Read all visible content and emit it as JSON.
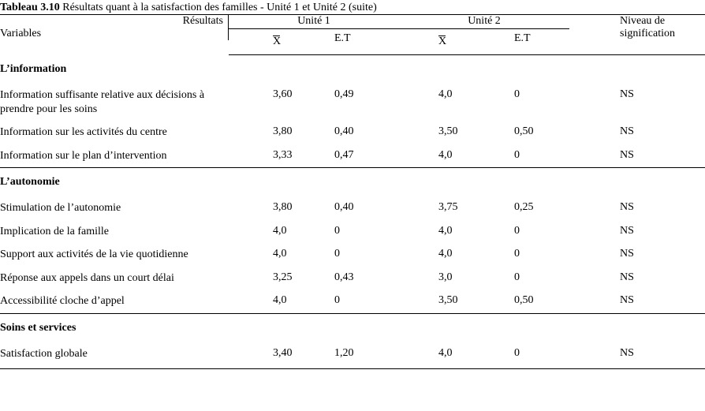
{
  "table": {
    "title_prefix": "Tableau 3.10",
    "title_rest": "  Résultats quant à la satisfaction des familles - Unité 1 et Unité 2 (suite)",
    "columns": {
      "variables": "Variables",
      "results": "Résultats",
      "unit1": "Unité 1",
      "unit2": "Unité 2",
      "sig": "Niveau de signification",
      "xbar": "X",
      "et": "E.T"
    },
    "sections": [
      {
        "label": "L’information",
        "rows": [
          {
            "label": "Information suffisante relative aux décisions à prendre pour les soins",
            "x1": "3,60",
            "et1": "0,49",
            "x2": "4,0",
            "et2": "0",
            "sig": "NS"
          },
          {
            "label": "Information sur les activités du centre",
            "x1": "3,80",
            "et1": "0,40",
            "x2": "3,50",
            "et2": "0,50",
            "sig": "NS"
          },
          {
            "label": "Information sur le plan d’intervention",
            "x1": "3,33",
            "et1": "0,47",
            "x2": "4,0",
            "et2": "0",
            "sig": "NS"
          }
        ]
      },
      {
        "label": "L’autonomie",
        "rows": [
          {
            "label": "Stimulation de l’autonomie",
            "x1": "3,80",
            "et1": "0,40",
            "x2": "3,75",
            "et2": "0,25",
            "sig": "NS"
          },
          {
            "label": "Implication de la famille",
            "x1": "4,0",
            "et1": "0",
            "x2": "4,0",
            "et2": "0",
            "sig": "NS"
          },
          {
            "label": "Support aux activités de la vie quotidienne",
            "x1": "4,0",
            "et1": "0",
            "x2": "4,0",
            "et2": "0",
            "sig": "NS"
          },
          {
            "label": "Réponse aux appels dans un court délai",
            "x1": "3,25",
            "et1": "0,43",
            "x2": "3,0",
            "et2": "0",
            "sig": "NS"
          },
          {
            "label": "Accessibilité cloche d’appel",
            "x1": "4,0",
            "et1": "0",
            "x2": "3,50",
            "et2": "0,50",
            "sig": "NS"
          }
        ]
      },
      {
        "label": "Soins et services",
        "rows": [
          {
            "label": "Satisfaction globale",
            "x1": "3,40",
            "et1": "1,20",
            "x2": "4,0",
            "et2": "0",
            "sig": "NS"
          }
        ]
      }
    ]
  }
}
